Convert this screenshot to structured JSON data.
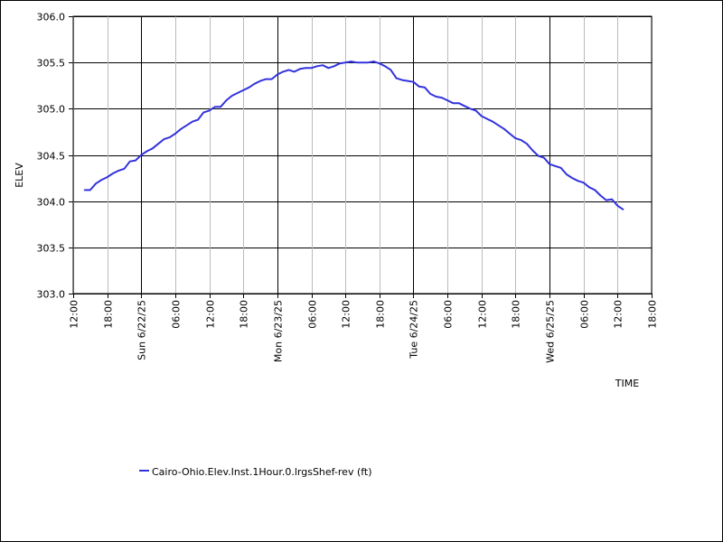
{
  "chart_data": {
    "type": "line",
    "title": "",
    "xlabel": "TIME",
    "ylabel": "ELEV",
    "ylim": [
      303.0,
      306.0
    ],
    "y_ticks": [
      {
        "value": 303.0,
        "label": "303.0"
      },
      {
        "value": 303.5,
        "label": "303.5"
      },
      {
        "value": 304.0,
        "label": "304.0"
      },
      {
        "value": 304.5,
        "label": "304.5"
      },
      {
        "value": 305.0,
        "label": "305.0"
      },
      {
        "value": 305.5,
        "label": "305.5"
      },
      {
        "value": 306.0,
        "label": "306.0"
      }
    ],
    "x_ticks": [
      {
        "time": "2025-06-21 12:00",
        "label": "12:00",
        "major": false
      },
      {
        "time": "2025-06-21 18:00",
        "label": "18:00",
        "major": false
      },
      {
        "time": "2025-06-22 00:00",
        "label": "Sun 6/22/25",
        "major": true
      },
      {
        "time": "2025-06-22 06:00",
        "label": "06:00",
        "major": false
      },
      {
        "time": "2025-06-22 12:00",
        "label": "12:00",
        "major": false
      },
      {
        "time": "2025-06-22 18:00",
        "label": "18:00",
        "major": false
      },
      {
        "time": "2025-06-23 00:00",
        "label": "Mon 6/23/25",
        "major": true
      },
      {
        "time": "2025-06-23 06:00",
        "label": "06:00",
        "major": false
      },
      {
        "time": "2025-06-23 12:00",
        "label": "12:00",
        "major": false
      },
      {
        "time": "2025-06-23 18:00",
        "label": "18:00",
        "major": false
      },
      {
        "time": "2025-06-24 00:00",
        "label": "Tue 6/24/25",
        "major": true
      },
      {
        "time": "2025-06-24 06:00",
        "label": "06:00",
        "major": false
      },
      {
        "time": "2025-06-24 12:00",
        "label": "12:00",
        "major": false
      },
      {
        "time": "2025-06-24 18:00",
        "label": "18:00",
        "major": false
      },
      {
        "time": "2025-06-25 00:00",
        "label": "Wed 6/25/25",
        "major": true
      },
      {
        "time": "2025-06-25 06:00",
        "label": "06:00",
        "major": false
      },
      {
        "time": "2025-06-25 12:00",
        "label": "12:00",
        "major": false
      },
      {
        "time": "2025-06-25 18:00",
        "label": "18:00",
        "major": false
      }
    ],
    "grid": true,
    "legend_position": "bottom-left",
    "series": [
      {
        "name": "Cairo-Ohio.Elev.Inst.1Hour.0.lrgsShef-rev (ft)",
        "color": "#3333dd",
        "points": [
          [
            "2025-06-21 14:00",
            304.12
          ],
          [
            "2025-06-21 15:00",
            304.12
          ],
          [
            "2025-06-21 16:00",
            304.19
          ],
          [
            "2025-06-21 17:00",
            304.23
          ],
          [
            "2025-06-21 18:00",
            304.26
          ],
          [
            "2025-06-21 19:00",
            304.3
          ],
          [
            "2025-06-21 20:00",
            304.33
          ],
          [
            "2025-06-21 21:00",
            304.35
          ],
          [
            "2025-06-21 22:00",
            304.43
          ],
          [
            "2025-06-21 23:00",
            304.44
          ],
          [
            "2025-06-22 00:00",
            304.5
          ],
          [
            "2025-06-22 01:00",
            304.54
          ],
          [
            "2025-06-22 02:00",
            304.57
          ],
          [
            "2025-06-22 03:00",
            304.62
          ],
          [
            "2025-06-22 04:00",
            304.67
          ],
          [
            "2025-06-22 05:00",
            304.69
          ],
          [
            "2025-06-22 06:00",
            304.73
          ],
          [
            "2025-06-22 07:00",
            304.78
          ],
          [
            "2025-06-22 08:00",
            304.82
          ],
          [
            "2025-06-22 09:00",
            304.86
          ],
          [
            "2025-06-22 10:00",
            304.88
          ],
          [
            "2025-06-22 11:00",
            304.96
          ],
          [
            "2025-06-22 12:00",
            304.98
          ],
          [
            "2025-06-22 13:00",
            305.02
          ],
          [
            "2025-06-22 14:00",
            305.02
          ],
          [
            "2025-06-22 15:00",
            305.09
          ],
          [
            "2025-06-22 16:00",
            305.14
          ],
          [
            "2025-06-22 17:00",
            305.17
          ],
          [
            "2025-06-22 18:00",
            305.2
          ],
          [
            "2025-06-22 19:00",
            305.23
          ],
          [
            "2025-06-22 20:00",
            305.27
          ],
          [
            "2025-06-22 21:00",
            305.3
          ],
          [
            "2025-06-22 22:00",
            305.32
          ],
          [
            "2025-06-22 23:00",
            305.32
          ],
          [
            "2025-06-23 00:00",
            305.37
          ],
          [
            "2025-06-23 01:00",
            305.4
          ],
          [
            "2025-06-23 02:00",
            305.42
          ],
          [
            "2025-06-23 03:00",
            305.4
          ],
          [
            "2025-06-23 04:00",
            305.43
          ],
          [
            "2025-06-23 05:00",
            305.44
          ],
          [
            "2025-06-23 06:00",
            305.44
          ],
          [
            "2025-06-23 07:00",
            305.46
          ],
          [
            "2025-06-23 08:00",
            305.47
          ],
          [
            "2025-06-23 09:00",
            305.44
          ],
          [
            "2025-06-23 10:00",
            305.46
          ],
          [
            "2025-06-23 11:00",
            305.49
          ],
          [
            "2025-06-23 12:00",
            305.5
          ],
          [
            "2025-06-23 13:00",
            305.51
          ],
          [
            "2025-06-23 14:00",
            305.5
          ],
          [
            "2025-06-23 15:00",
            305.5
          ],
          [
            "2025-06-23 16:00",
            305.5
          ],
          [
            "2025-06-23 17:00",
            305.51
          ],
          [
            "2025-06-23 18:00",
            305.49
          ],
          [
            "2025-06-23 19:00",
            305.46
          ],
          [
            "2025-06-23 20:00",
            305.42
          ],
          [
            "2025-06-23 21:00",
            305.33
          ],
          [
            "2025-06-23 22:00",
            305.31
          ],
          [
            "2025-06-23 23:00",
            305.3
          ],
          [
            "2025-06-24 00:00",
            305.29
          ],
          [
            "2025-06-24 01:00",
            305.24
          ],
          [
            "2025-06-24 02:00",
            305.23
          ],
          [
            "2025-06-24 03:00",
            305.16
          ],
          [
            "2025-06-24 04:00",
            305.13
          ],
          [
            "2025-06-24 05:00",
            305.12
          ],
          [
            "2025-06-24 06:00",
            305.09
          ],
          [
            "2025-06-24 07:00",
            305.06
          ],
          [
            "2025-06-24 08:00",
            305.06
          ],
          [
            "2025-06-24 09:00",
            305.03
          ],
          [
            "2025-06-24 10:00",
            305.0
          ],
          [
            "2025-06-24 11:00",
            304.98
          ],
          [
            "2025-06-24 12:00",
            304.92
          ],
          [
            "2025-06-24 13:00",
            304.89
          ],
          [
            "2025-06-24 14:00",
            304.86
          ],
          [
            "2025-06-24 15:00",
            304.82
          ],
          [
            "2025-06-24 16:00",
            304.78
          ],
          [
            "2025-06-24 17:00",
            304.73
          ],
          [
            "2025-06-24 18:00",
            304.68
          ],
          [
            "2025-06-24 19:00",
            304.66
          ],
          [
            "2025-06-24 20:00",
            304.62
          ],
          [
            "2025-06-24 21:00",
            304.55
          ],
          [
            "2025-06-24 22:00",
            304.49
          ],
          [
            "2025-06-24 23:00",
            304.47
          ],
          [
            "2025-06-25 00:00",
            304.4
          ],
          [
            "2025-06-25 01:00",
            304.38
          ],
          [
            "2025-06-25 02:00",
            304.36
          ],
          [
            "2025-06-25 03:00",
            304.29
          ],
          [
            "2025-06-25 04:00",
            304.25
          ],
          [
            "2025-06-25 05:00",
            304.22
          ],
          [
            "2025-06-25 06:00",
            304.2
          ],
          [
            "2025-06-25 07:00",
            304.15
          ],
          [
            "2025-06-25 08:00",
            304.12
          ],
          [
            "2025-06-25 09:00",
            304.06
          ],
          [
            "2025-06-25 10:00",
            304.01
          ],
          [
            "2025-06-25 11:00",
            304.02
          ],
          [
            "2025-06-25 12:00",
            303.95
          ],
          [
            "2025-06-25 13:00",
            303.91
          ]
        ]
      }
    ]
  }
}
